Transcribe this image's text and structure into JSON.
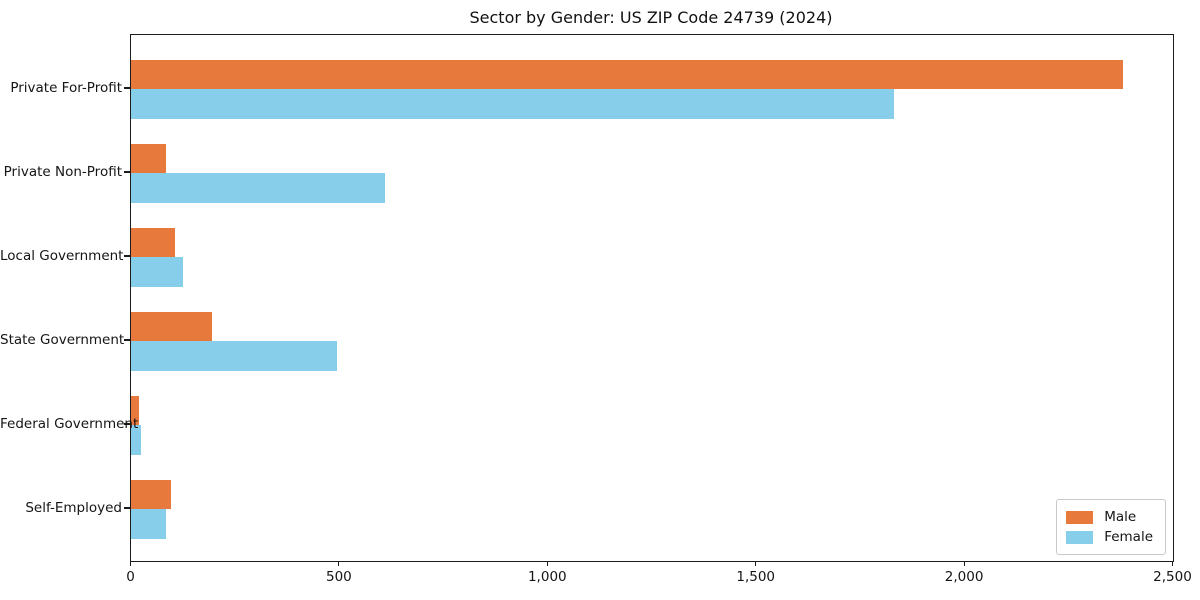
{
  "chart_data": {
    "type": "bar",
    "orientation": "horizontal",
    "title": "Sector by Gender: US ZIP Code 24739 (2024)",
    "categories": [
      "Private For-Profit",
      "Private Non-Profit",
      "Local Government",
      "State Government",
      "Federal Government",
      "Self-Employed"
    ],
    "series": [
      {
        "name": "Male",
        "color": "#e8793d",
        "values": [
          2380,
          85,
          105,
          195,
          20,
          95
        ]
      },
      {
        "name": "Female",
        "color": "#87ceeb",
        "values": [
          1830,
          610,
          125,
          495,
          25,
          85
        ]
      }
    ],
    "xlim": [
      0,
      2500
    ],
    "xticks": {
      "values": [
        0,
        500,
        1000,
        1500,
        2000,
        2500
      ],
      "labels": [
        "0",
        "500",
        "1,000",
        "1,500",
        "2,000",
        "2,500"
      ]
    },
    "legend": {
      "position": "lower-right"
    },
    "grid": false,
    "background_color": "#ffffff",
    "spine_color": "#1b1b1b"
  }
}
